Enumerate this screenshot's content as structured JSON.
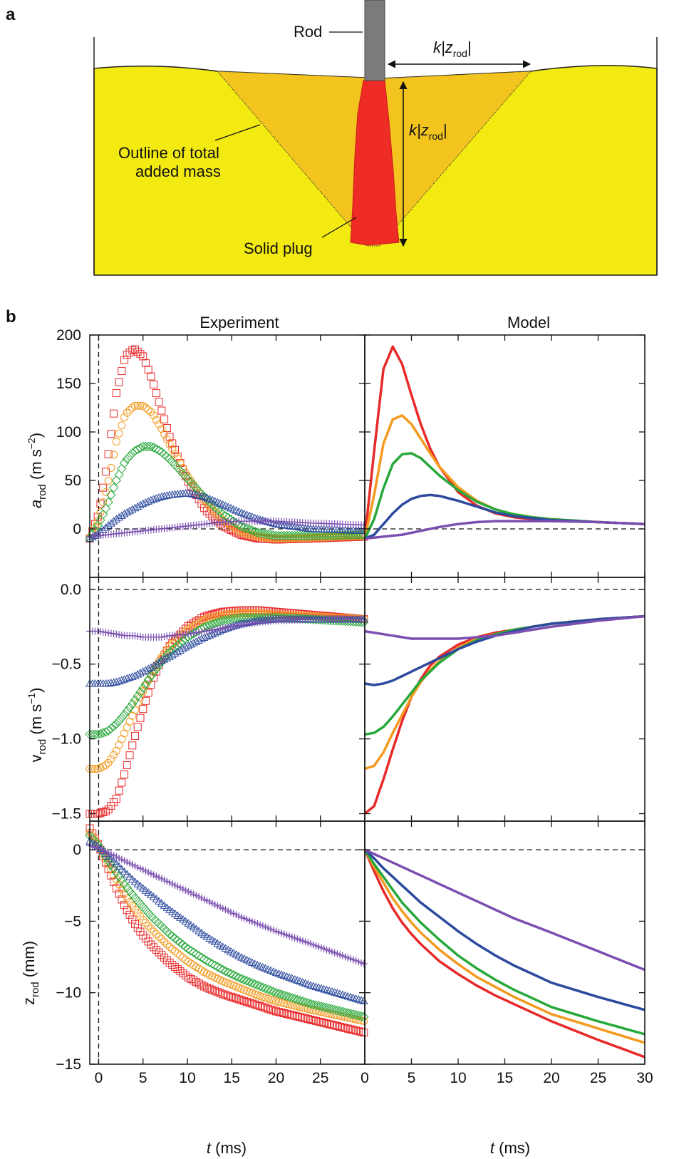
{
  "figure": {
    "panel_a_label": "a",
    "panel_b_label": "b",
    "rod_label": "Rod",
    "k_label": "k",
    "z_label": "z",
    "rod_sub": "rod",
    "outline_label_1": "Outline of total",
    "outline_label_2": "added mass",
    "plug_label": "Solid plug",
    "col_experiment": "Experiment",
    "col_model": "Model",
    "xlabel_t": "t",
    "xlabel_unit": " (ms)",
    "colors": {
      "red": "#e8292a",
      "orange": "#f39a1f",
      "green": "#27a83b",
      "blue": "#2c4a9e",
      "purple": "#7a4fb0",
      "sand": "#f3ea12",
      "cone": "#f4c41e",
      "plug": "#ee2b24",
      "rod": "#7b7b7b"
    }
  },
  "chart_data": [
    {
      "type": "scatter",
      "panel": "experiment-acceleration",
      "ylabel": "a_rod (m s^-2)",
      "ylim": [
        -50,
        200
      ],
      "yticks": [
        0,
        50,
        100,
        150,
        200
      ],
      "xlim": [
        -1,
        30
      ],
      "xticks": [
        0,
        5,
        10,
        15,
        20,
        25
      ],
      "x": [
        -1,
        0,
        1,
        2,
        3,
        4,
        5,
        6,
        7,
        8,
        10,
        12,
        14,
        16,
        18,
        20,
        24,
        30
      ],
      "series": [
        {
          "color": "red",
          "marker": "square",
          "values": [
            -10,
            15,
            70,
            140,
            178,
            186,
            178,
            155,
            125,
            95,
            50,
            20,
            3,
            -6,
            -10,
            -11,
            -10,
            -8
          ]
        },
        {
          "color": "orange",
          "marker": "circle",
          "values": [
            -10,
            10,
            45,
            90,
            118,
            127,
            127,
            120,
            105,
            87,
            55,
            28,
            9,
            -3,
            -8,
            -10,
            -9,
            -7
          ]
        },
        {
          "color": "green",
          "marker": "diamond",
          "values": [
            -10,
            5,
            25,
            50,
            70,
            80,
            85,
            85,
            80,
            72,
            52,
            32,
            15,
            3,
            -4,
            -7,
            -7,
            -6
          ]
        },
        {
          "color": "blue",
          "marker": "triangle",
          "values": [
            -10,
            -5,
            3,
            10,
            16,
            21,
            26,
            30,
            33,
            35,
            37,
            33,
            25,
            17,
            10,
            5,
            0,
            -2
          ]
        },
        {
          "color": "purple",
          "marker": "plus",
          "values": [
            -8,
            -7,
            -6,
            -5,
            -4,
            -3,
            -2,
            -1,
            0,
            1,
            3,
            5,
            7,
            8,
            8,
            8,
            6,
            4
          ]
        }
      ]
    },
    {
      "type": "line",
      "panel": "model-acceleration",
      "ylim": [
        -50,
        200
      ],
      "xlim": [
        0,
        30
      ],
      "xticks": [
        0,
        5,
        10,
        15,
        20,
        25,
        30
      ],
      "x": [
        0,
        1,
        2,
        3,
        4,
        5,
        6,
        7,
        8,
        10,
        12,
        14,
        16,
        18,
        20,
        25,
        30
      ],
      "series": [
        {
          "color": "red",
          "values": [
            -10,
            80,
            165,
            188,
            170,
            138,
            108,
            83,
            64,
            38,
            24,
            16,
            12,
            10,
            9,
            7,
            5
          ]
        },
        {
          "color": "orange",
          "values": [
            -10,
            35,
            88,
            113,
            117,
            108,
            93,
            78,
            64,
            43,
            29,
            20,
            15,
            12,
            10,
            7,
            5
          ]
        },
        {
          "color": "green",
          "values": [
            -10,
            10,
            42,
            67,
            77,
            78,
            73,
            64,
            55,
            40,
            28,
            20,
            15,
            12,
            10,
            7,
            5
          ]
        },
        {
          "color": "blue",
          "values": [
            -10,
            -6,
            5,
            16,
            25,
            31,
            34,
            35,
            34,
            29,
            23,
            17,
            13,
            11,
            9,
            7,
            5
          ]
        },
        {
          "color": "purple",
          "values": [
            -10,
            -9,
            -8,
            -7,
            -6,
            -4,
            -2,
            0,
            2,
            5,
            7,
            8,
            8,
            8,
            8,
            7,
            5
          ]
        }
      ]
    },
    {
      "type": "scatter",
      "panel": "experiment-velocity",
      "ylabel": "v_rod (m s^-1)",
      "ylim": [
        -1.55,
        0.08
      ],
      "yticks": [
        0.0,
        -0.5,
        -1.0,
        -1.5
      ],
      "ytick_labels": [
        "0.0",
        "−0.5",
        "−1.0",
        "−1.5"
      ],
      "xlim": [
        -1,
        30
      ],
      "x": [
        -1,
        0,
        1,
        2,
        3,
        4,
        5,
        6,
        7,
        8,
        10,
        12,
        14,
        16,
        18,
        20,
        24,
        30
      ],
      "series": [
        {
          "color": "red",
          "marker": "square",
          "values": [
            -1.5,
            -1.5,
            -1.48,
            -1.4,
            -1.22,
            -1.0,
            -0.8,
            -0.62,
            -0.48,
            -0.38,
            -0.25,
            -0.18,
            -0.15,
            -0.14,
            -0.14,
            -0.15,
            -0.17,
            -0.2
          ]
        },
        {
          "color": "orange",
          "marker": "circle",
          "values": [
            -1.2,
            -1.2,
            -1.17,
            -1.08,
            -0.95,
            -0.82,
            -0.68,
            -0.56,
            -0.46,
            -0.38,
            -0.27,
            -0.2,
            -0.17,
            -0.16,
            -0.16,
            -0.17,
            -0.18,
            -0.2
          ]
        },
        {
          "color": "green",
          "marker": "diamond",
          "values": [
            -0.97,
            -0.97,
            -0.95,
            -0.9,
            -0.83,
            -0.75,
            -0.66,
            -0.57,
            -0.49,
            -0.42,
            -0.32,
            -0.25,
            -0.21,
            -0.19,
            -0.19,
            -0.19,
            -0.2,
            -0.22
          ]
        },
        {
          "color": "blue",
          "marker": "triangle",
          "values": [
            -0.63,
            -0.63,
            -0.63,
            -0.62,
            -0.6,
            -0.58,
            -0.55,
            -0.52,
            -0.48,
            -0.45,
            -0.38,
            -0.32,
            -0.27,
            -0.23,
            -0.21,
            -0.2,
            -0.2,
            -0.2
          ]
        },
        {
          "color": "purple",
          "marker": "plus",
          "values": [
            -0.28,
            -0.28,
            -0.29,
            -0.3,
            -0.31,
            -0.31,
            -0.32,
            -0.32,
            -0.32,
            -0.31,
            -0.3,
            -0.28,
            -0.26,
            -0.24,
            -0.22,
            -0.21,
            -0.2,
            -0.2
          ]
        }
      ]
    },
    {
      "type": "line",
      "panel": "model-velocity",
      "ylim": [
        -1.55,
        0.08
      ],
      "xlim": [
        0,
        30
      ],
      "x": [
        0,
        1,
        2,
        3,
        4,
        5,
        6,
        7,
        8,
        10,
        12,
        14,
        16,
        18,
        20,
        25,
        30
      ],
      "series": [
        {
          "color": "red",
          "values": [
            -1.5,
            -1.45,
            -1.27,
            -1.07,
            -0.88,
            -0.72,
            -0.6,
            -0.51,
            -0.45,
            -0.37,
            -0.32,
            -0.29,
            -0.27,
            -0.25,
            -0.23,
            -0.2,
            -0.18
          ]
        },
        {
          "color": "orange",
          "values": [
            -1.2,
            -1.18,
            -1.09,
            -0.96,
            -0.84,
            -0.72,
            -0.62,
            -0.54,
            -0.48,
            -0.39,
            -0.33,
            -0.3,
            -0.27,
            -0.25,
            -0.23,
            -0.2,
            -0.18
          ]
        },
        {
          "color": "green",
          "values": [
            -0.97,
            -0.96,
            -0.92,
            -0.85,
            -0.77,
            -0.69,
            -0.61,
            -0.55,
            -0.49,
            -0.4,
            -0.34,
            -0.3,
            -0.27,
            -0.25,
            -0.23,
            -0.2,
            -0.18
          ]
        },
        {
          "color": "blue",
          "values": [
            -0.63,
            -0.64,
            -0.63,
            -0.61,
            -0.58,
            -0.55,
            -0.52,
            -0.49,
            -0.46,
            -0.4,
            -0.35,
            -0.31,
            -0.28,
            -0.25,
            -0.23,
            -0.2,
            -0.18
          ]
        },
        {
          "color": "purple",
          "values": [
            -0.28,
            -0.29,
            -0.3,
            -0.31,
            -0.32,
            -0.33,
            -0.33,
            -0.33,
            -0.33,
            -0.33,
            -0.32,
            -0.31,
            -0.29,
            -0.27,
            -0.25,
            -0.21,
            -0.18
          ]
        }
      ]
    },
    {
      "type": "scatter",
      "panel": "experiment-position",
      "ylabel": "z_rod (mm)",
      "ylim": [
        -15,
        2
      ],
      "yticks": [
        0,
        -5,
        -10,
        -15
      ],
      "ytick_labels": [
        "0",
        "−5",
        "−10",
        "−15"
      ],
      "xlim": [
        -1,
        30
      ],
      "x": [
        -1,
        0,
        1,
        2,
        3,
        4,
        5,
        6,
        7,
        8,
        10,
        12,
        14,
        16,
        18,
        20,
        24,
        30
      ],
      "series": [
        {
          "color": "red",
          "marker": "square",
          "values": [
            1.5,
            0.3,
            -1.2,
            -2.7,
            -4.0,
            -5.1,
            -6.0,
            -6.7,
            -7.3,
            -7.9,
            -8.9,
            -9.6,
            -10.1,
            -10.5,
            -10.9,
            -11.3,
            -11.9,
            -12.8
          ]
        },
        {
          "color": "orange",
          "marker": "circle",
          "values": [
            1.2,
            0.3,
            -0.9,
            -2.1,
            -3.2,
            -4.1,
            -4.9,
            -5.6,
            -6.2,
            -6.8,
            -7.8,
            -8.6,
            -9.2,
            -9.7,
            -10.2,
            -10.6,
            -11.2,
            -12.0
          ]
        },
        {
          "color": "green",
          "marker": "diamond",
          "values": [
            1.0,
            0.3,
            -0.7,
            -1.6,
            -2.5,
            -3.3,
            -4.0,
            -4.7,
            -5.3,
            -5.9,
            -6.9,
            -7.7,
            -8.4,
            -9.0,
            -9.5,
            -10.0,
            -10.8,
            -11.7
          ]
        },
        {
          "color": "blue",
          "marker": "triangle",
          "values": [
            0.6,
            0.2,
            -0.4,
            -1.0,
            -1.6,
            -2.2,
            -2.7,
            -3.2,
            -3.7,
            -4.2,
            -5.1,
            -6.0,
            -6.8,
            -7.5,
            -8.1,
            -8.6,
            -9.5,
            -10.6
          ]
        },
        {
          "color": "purple",
          "marker": "plus",
          "values": [
            0.3,
            0.1,
            -0.2,
            -0.5,
            -0.8,
            -1.1,
            -1.4,
            -1.7,
            -2.0,
            -2.3,
            -2.9,
            -3.5,
            -4.1,
            -4.7,
            -5.2,
            -5.7,
            -6.6,
            -8.0
          ]
        }
      ]
    },
    {
      "type": "line",
      "panel": "model-position",
      "ylim": [
        -15,
        2
      ],
      "xlim": [
        0,
        30
      ],
      "x": [
        0,
        1,
        2,
        3,
        4,
        5,
        6,
        7,
        8,
        10,
        12,
        14,
        16,
        18,
        20,
        25,
        30
      ],
      "series": [
        {
          "color": "red",
          "values": [
            0,
            -1.5,
            -2.9,
            -4.1,
            -5.1,
            -5.9,
            -6.6,
            -7.2,
            -7.8,
            -8.7,
            -9.5,
            -10.2,
            -10.8,
            -11.4,
            -12.0,
            -13.3,
            -14.5
          ]
        },
        {
          "color": "orange",
          "values": [
            0,
            -1.2,
            -2.3,
            -3.4,
            -4.3,
            -5.1,
            -5.8,
            -6.4,
            -7.0,
            -8.0,
            -8.9,
            -9.6,
            -10.3,
            -10.9,
            -11.5,
            -12.5,
            -13.5
          ]
        },
        {
          "color": "green",
          "values": [
            0,
            -1.0,
            -1.9,
            -2.8,
            -3.7,
            -4.4,
            -5.1,
            -5.7,
            -6.3,
            -7.4,
            -8.3,
            -9.1,
            -9.8,
            -10.4,
            -11.0,
            -12.0,
            -12.9
          ]
        },
        {
          "color": "blue",
          "values": [
            0,
            -0.6,
            -1.3,
            -1.9,
            -2.5,
            -3.1,
            -3.7,
            -4.2,
            -4.7,
            -5.7,
            -6.6,
            -7.4,
            -8.1,
            -8.7,
            -9.3,
            -10.3,
            -11.2
          ]
        },
        {
          "color": "purple",
          "values": [
            0,
            -0.3,
            -0.6,
            -0.9,
            -1.2,
            -1.5,
            -1.8,
            -2.1,
            -2.4,
            -3.0,
            -3.6,
            -4.2,
            -4.8,
            -5.3,
            -5.8,
            -7.1,
            -8.4
          ]
        }
      ]
    }
  ]
}
